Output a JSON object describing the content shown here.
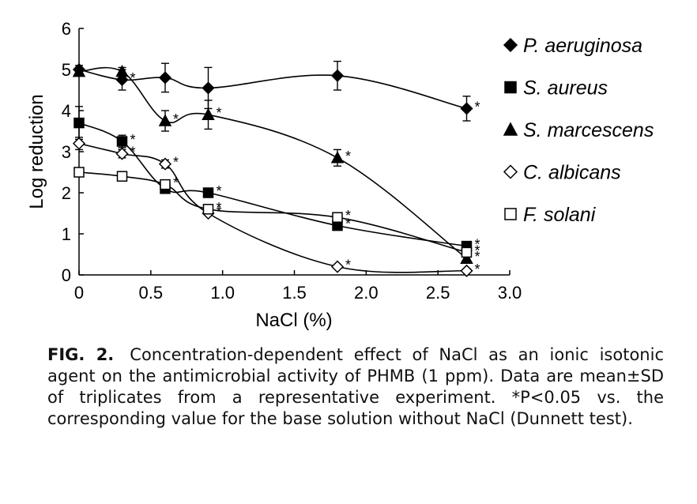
{
  "chart_data": {
    "type": "line",
    "xlabel": "NaCl (%)",
    "ylabel": "Log reduction",
    "xlim": [
      0,
      3.0
    ],
    "ylim": [
      0,
      6
    ],
    "xticks": [
      "0",
      "0.5",
      "1.0",
      "1.5",
      "2.0",
      "2.5",
      "3.0"
    ],
    "yticks": [
      "0",
      "1",
      "2",
      "3",
      "4",
      "5",
      "6"
    ],
    "x": [
      0,
      0.3,
      0.6,
      0.9,
      1.8,
      2.7
    ],
    "legend_position": "right",
    "series": [
      {
        "name": "P. aeruginosa",
        "marker": "diamond-filled",
        "values": [
          5.0,
          4.75,
          4.8,
          4.55,
          4.85,
          4.05
        ],
        "errors": [
          0.1,
          0.25,
          0.35,
          0.5,
          0.35,
          0.3
        ],
        "sig": [
          false,
          true,
          false,
          false,
          false,
          true
        ]
      },
      {
        "name": "S. aureus",
        "marker": "square-filled",
        "values": [
          3.7,
          3.25,
          2.1,
          2.0,
          1.2,
          0.7
        ],
        "errors": [
          0.4,
          0.15,
          0.05,
          0.05,
          0.05,
          0.05
        ],
        "sig": [
          false,
          true,
          false,
          true,
          true,
          true
        ]
      },
      {
        "name": "S. marcescens",
        "marker": "triangle-filled",
        "values": [
          4.95,
          4.95,
          3.75,
          3.9,
          2.85,
          0.4
        ],
        "errors": [
          0.1,
          0.1,
          0.25,
          0.35,
          0.2,
          0.05
        ],
        "sig": [
          false,
          false,
          true,
          true,
          true,
          true
        ]
      },
      {
        "name": "C. albicans",
        "marker": "diamond-open",
        "values": [
          3.2,
          2.95,
          2.7,
          1.5,
          0.2,
          0.1
        ],
        "errors": [
          0.15,
          0.1,
          0.1,
          0.05,
          0.05,
          0.05
        ],
        "sig": [
          false,
          true,
          true,
          true,
          true,
          true
        ]
      },
      {
        "name": "F. solani",
        "marker": "square-open",
        "values": [
          2.5,
          2.4,
          2.2,
          1.6,
          1.4,
          0.55
        ],
        "errors": [
          0.05,
          0.05,
          0.05,
          0.05,
          0.05,
          0.05
        ],
        "sig": [
          false,
          false,
          true,
          true,
          true,
          true
        ]
      }
    ],
    "sig_symbol": "*",
    "caption_label": "FIG. 2.",
    "caption_text": "Concentration-dependent effect of NaCl as an ionic isotonic agent on the antimicrobial activity of PHMB (1 ppm). Data are mean±SD of triplicates from a representative experiment. *P<0.05 vs. the corresponding value for the base solution without NaCl (Dunnett test)."
  }
}
